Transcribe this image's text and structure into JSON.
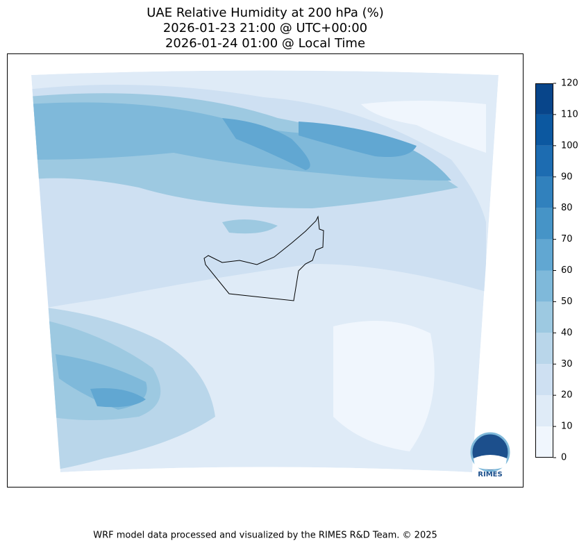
{
  "title": [
    "UAE Relative Humidity at 200 hPa (%)",
    "2026-01-23 21:00 @ UTC+00:00",
    "2026-01-24 01:00 @ Local Time"
  ],
  "colorbar": {
    "lim": [
      0,
      120
    ],
    "ticks": [
      0,
      10,
      20,
      30,
      40,
      50,
      60,
      70,
      80,
      90,
      100,
      110,
      120
    ],
    "colors": [
      "#f0f6fd",
      "#dfebf7",
      "#cee0f2",
      "#b9d6ea",
      "#9dc9e1",
      "#7fb9da",
      "#61a7d2",
      "#4694c7",
      "#3181bd",
      "#1d6cb1",
      "#0c58a0",
      "#08458a"
    ]
  },
  "logo": "RIMES",
  "footer": "WRF model data processed and visualized by the RIMES R&D Team. © 2025"
}
